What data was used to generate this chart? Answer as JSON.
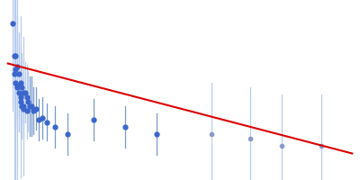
{
  "x_points": [
    0.003,
    0.004,
    0.005,
    0.005,
    0.006,
    0.006,
    0.007,
    0.007,
    0.008,
    0.008,
    0.009,
    0.009,
    0.01,
    0.01,
    0.011,
    0.012,
    0.012,
    0.013,
    0.014,
    0.015,
    0.016,
    0.018,
    0.02,
    0.022,
    0.025,
    0.03,
    0.038,
    0.055,
    0.075,
    0.095,
    0.004,
    0.005,
    0.006,
    0.008,
    0.01,
    0.13,
    0.155,
    0.175,
    0.2
  ],
  "y_points": [
    0.72,
    0.58,
    0.58,
    0.52,
    0.53,
    0.45,
    0.5,
    0.42,
    0.46,
    0.38,
    0.44,
    0.36,
    0.42,
    0.35,
    0.42,
    0.4,
    0.34,
    0.38,
    0.36,
    0.36,
    0.34,
    0.35,
    0.3,
    0.31,
    0.29,
    0.27,
    0.24,
    0.3,
    0.27,
    0.24,
    0.5,
    0.46,
    0.44,
    0.4,
    0.36,
    0.24,
    0.22,
    0.19,
    0.19
  ],
  "yerr_points": [
    0.38,
    0.3,
    0.28,
    0.25,
    0.22,
    0.2,
    0.18,
    0.17,
    0.16,
    0.15,
    0.15,
    0.14,
    0.14,
    0.13,
    0.13,
    0.14,
    0.12,
    0.13,
    0.13,
    0.13,
    0.1,
    0.09,
    0.09,
    0.09,
    0.08,
    0.09,
    0.09,
    0.09,
    0.09,
    0.09,
    0.55,
    0.45,
    0.4,
    0.35,
    0.3,
    0.22,
    0.22,
    0.22,
    0.22
  ],
  "is_light": [
    false,
    false,
    false,
    false,
    false,
    false,
    false,
    false,
    false,
    false,
    false,
    false,
    false,
    false,
    false,
    false,
    false,
    false,
    false,
    false,
    false,
    false,
    false,
    false,
    false,
    false,
    false,
    false,
    false,
    false,
    false,
    false,
    false,
    false,
    false,
    true,
    true,
    true,
    true
  ],
  "is_left_dense": [
    true,
    true,
    true,
    true,
    true,
    true,
    true,
    true,
    true,
    true,
    true,
    true,
    true,
    true,
    true,
    true,
    true,
    true,
    false,
    false,
    false,
    false,
    false,
    false,
    false,
    false,
    false,
    false,
    false,
    false,
    true,
    true,
    true,
    true,
    true,
    false,
    false,
    false,
    false
  ],
  "line_x": [
    0.0,
    0.22
  ],
  "line_y": [
    0.545,
    0.155
  ],
  "bg_color": "#ffffff",
  "dot_color_main": "#3a66cc",
  "dot_color_light": "#8899cc",
  "err_color_dense": "#b8ccee",
  "err_color_normal": "#7799cc",
  "line_color": "#dd0000",
  "figsize": [
    4.0,
    2.0
  ],
  "dpi": 100,
  "xlim": [
    -0.005,
    0.225
  ],
  "ylim": [
    0.04,
    0.82
  ]
}
